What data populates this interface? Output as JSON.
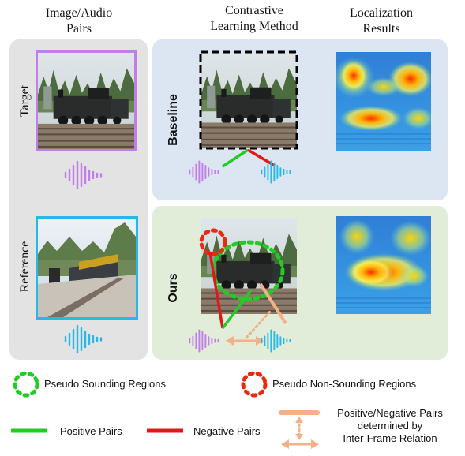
{
  "headers": {
    "col1": [
      "Image/Audio",
      "Pairs"
    ],
    "col2": [
      "Contrastive",
      "Learning Method"
    ],
    "col3": [
      "Localization",
      "Results"
    ]
  },
  "row_labels": {
    "target": "Target",
    "reference": "Reference",
    "baseline": "Baseline",
    "ours": "Ours"
  },
  "legend": {
    "pseudo_sounding": "Pseudo Sounding Regions",
    "pseudo_non_sounding": "Pseudo Non-Sounding Regions",
    "positive": "Positive Pairs",
    "negative": "Negative Pairs",
    "inter_frame": [
      "Positive/Negative Pairs",
      "determined by",
      "Inter-Frame Relation"
    ]
  },
  "colors": {
    "target_audio": "#c07fe8",
    "reference_audio": "#28b8e8",
    "positive": "#22cc22",
    "negative": "#e01818",
    "inter_frame": "#f4b088",
    "gray_panel": "#e3e3e3",
    "blue_panel": "#dbe6f2",
    "green_panel": "#e1ecd9"
  }
}
